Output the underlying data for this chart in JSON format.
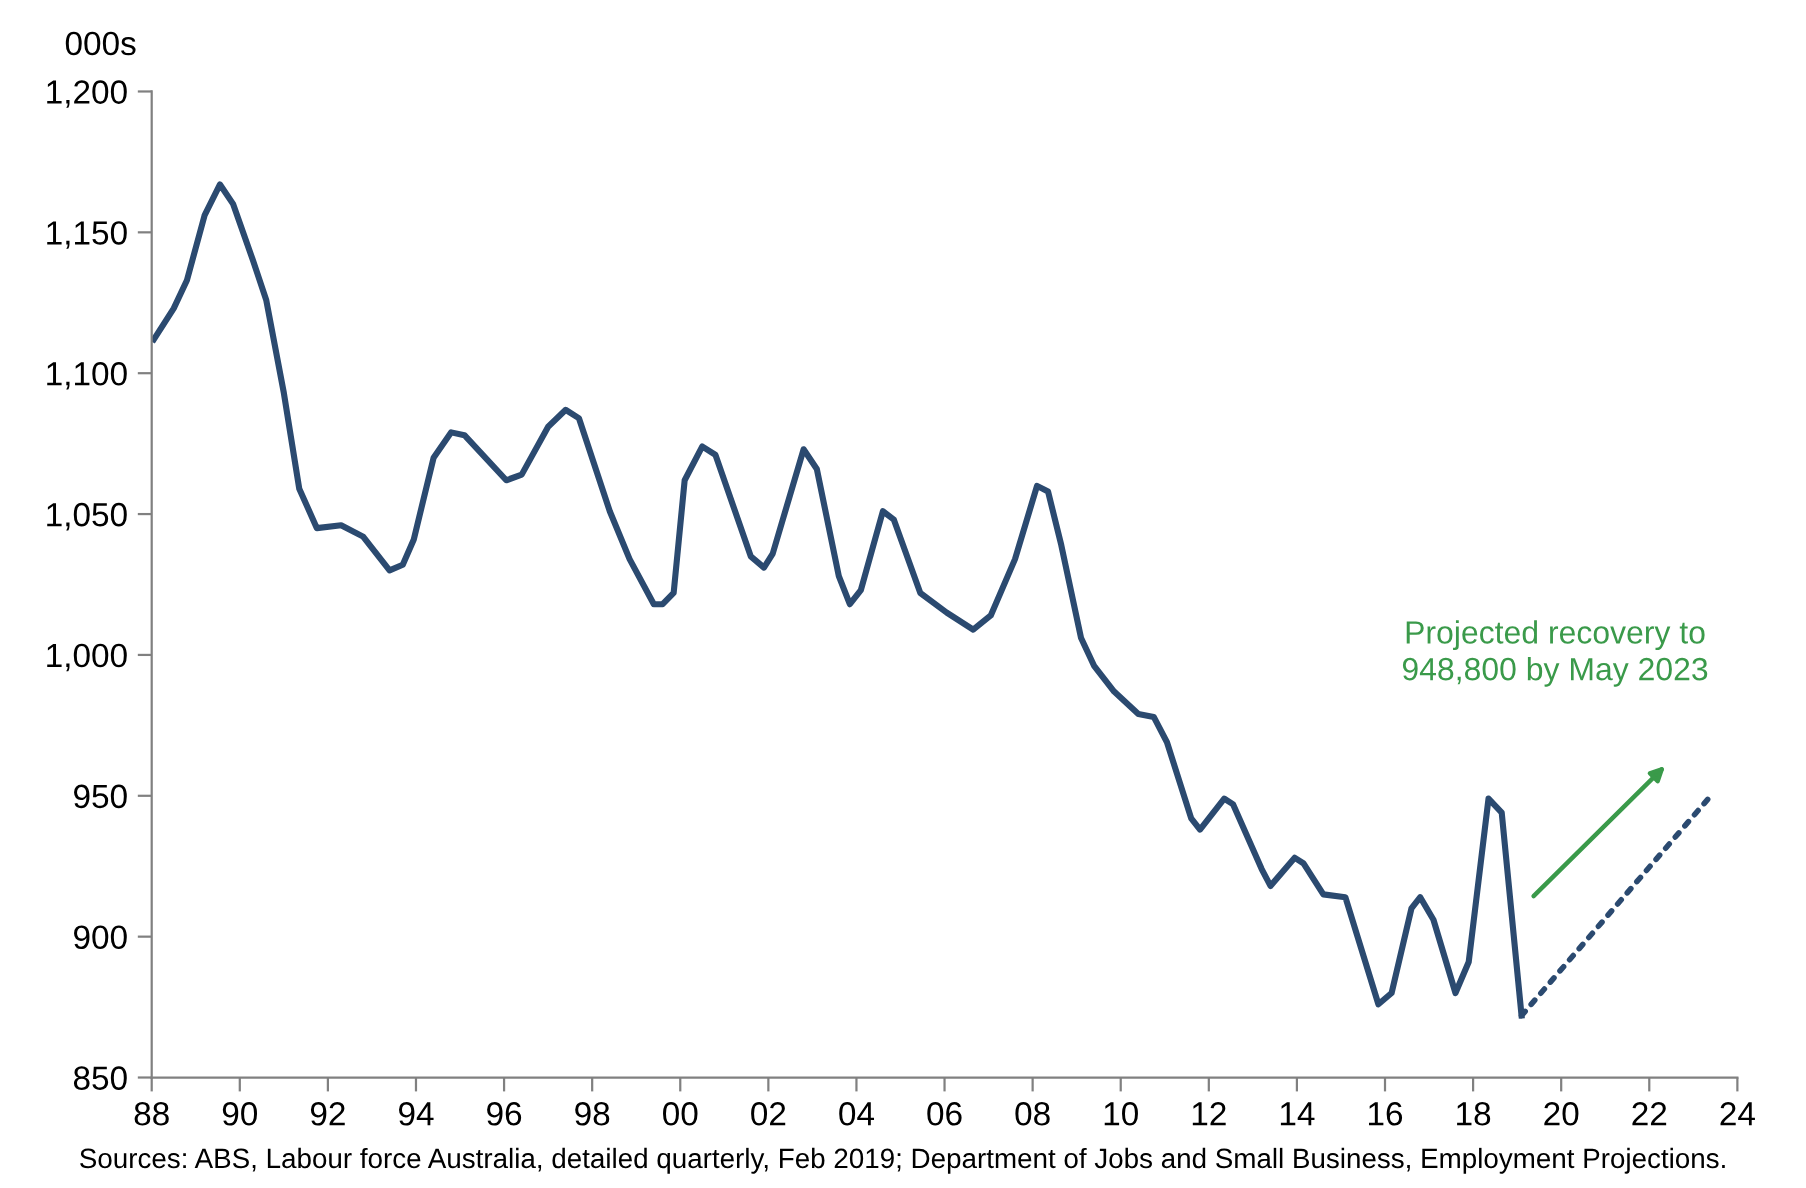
{
  "chart_data": {
    "type": "line",
    "ylabel": "000s",
    "series": [
      {
        "color": "#2b4a70",
        "line_style": "solid",
        "x": [
          1988.05,
          1988.5,
          1988.8,
          1989.2,
          1989.55,
          1989.85,
          1990.3,
          1990.6,
          1991.0,
          1991.35,
          1991.75,
          1992.3,
          1992.8,
          1993.4,
          1993.7,
          1993.95,
          1994.4,
          1994.8,
          1995.1,
          1996.05,
          1996.4,
          1997.0,
          1997.4,
          1997.7,
          1998.4,
          1998.85,
          1999.4,
          1999.6,
          1999.85,
          2000.1,
          2000.5,
          2000.8,
          2001.6,
          2001.9,
          2002.1,
          2002.8,
          2003.1,
          2003.6,
          2003.85,
          2004.1,
          2004.6,
          2004.85,
          2005.45,
          2006.05,
          2006.65,
          2007.05,
          2007.6,
          2008.1,
          2008.35,
          2008.65,
          2009.1,
          2009.4,
          2009.85,
          2010.4,
          2010.75,
          2011.05,
          2011.6,
          2011.8,
          2012.35,
          2012.55,
          2013.2,
          2013.4,
          2013.95,
          2014.15,
          2014.6,
          2015.1,
          2015.85,
          2016.15,
          2016.6,
          2016.8,
          2017.1,
          2017.6,
          2017.9,
          2018.35,
          2018.65,
          2019.1
        ],
        "values": [
          1112,
          1123,
          1133,
          1156,
          1167,
          1160,
          1140,
          1126,
          1093,
          1059,
          1045,
          1046,
          1042,
          1030,
          1032,
          1041,
          1070,
          1079,
          1078,
          1062,
          1064,
          1081,
          1087,
          1084,
          1051,
          1034,
          1018,
          1018,
          1022,
          1062,
          1074,
          1071,
          1035,
          1031,
          1036,
          1073,
          1066,
          1028,
          1018,
          1023,
          1051,
          1048,
          1022,
          1015,
          1009,
          1014,
          1034,
          1060,
          1058,
          1039,
          1006,
          996,
          987,
          979,
          978,
          969,
          942,
          938,
          949,
          947,
          924,
          918,
          928,
          926,
          915,
          914,
          876,
          880,
          910,
          914,
          906,
          880,
          891,
          949,
          944,
          872
        ]
      },
      {
        "color": "#2b4a70",
        "line_style": "dotted",
        "x": [
          2019.1,
          2023.33
        ],
        "values": [
          872,
          948.8
        ]
      }
    ],
    "xlim": [
      1988,
      2024
    ],
    "xticks": [
      {
        "value": 1988,
        "label": "88"
      },
      {
        "value": 1990,
        "label": "90"
      },
      {
        "value": 1992,
        "label": "92"
      },
      {
        "value": 1994,
        "label": "94"
      },
      {
        "value": 1996,
        "label": "96"
      },
      {
        "value": 1998,
        "label": "98"
      },
      {
        "value": 2000,
        "label": "00"
      },
      {
        "value": 2002,
        "label": "02"
      },
      {
        "value": 2004,
        "label": "04"
      },
      {
        "value": 2006,
        "label": "06"
      },
      {
        "value": 2008,
        "label": "08"
      },
      {
        "value": 2010,
        "label": "10"
      },
      {
        "value": 2012,
        "label": "12"
      },
      {
        "value": 2014,
        "label": "14"
      },
      {
        "value": 2016,
        "label": "16"
      },
      {
        "value": 2018,
        "label": "18"
      },
      {
        "value": 2020,
        "label": "20"
      },
      {
        "value": 2022,
        "label": "22"
      },
      {
        "value": 2024,
        "label": "24"
      }
    ],
    "ylim": [
      850,
      1200
    ],
    "yticks": [
      {
        "value": 850,
        "label": "850"
      },
      {
        "value": 900,
        "label": "900"
      },
      {
        "value": 950,
        "label": "950"
      },
      {
        "value": 1000,
        "label": "1,000"
      },
      {
        "value": 1050,
        "label": "1,050"
      },
      {
        "value": 1100,
        "label": "1,100"
      },
      {
        "value": 1150,
        "label": "1,150"
      },
      {
        "value": 1200,
        "label": "1,200"
      }
    ],
    "grid": false,
    "legend": false,
    "marker": "none",
    "annotations": [
      "Projected recovery to\n948,800 by May 2023",
      "Sources: ABS, Labour force Australia, detailed quarterly, Feb 2019; Department of Jobs and Small Business, Employment Projections."
    ]
  }
}
